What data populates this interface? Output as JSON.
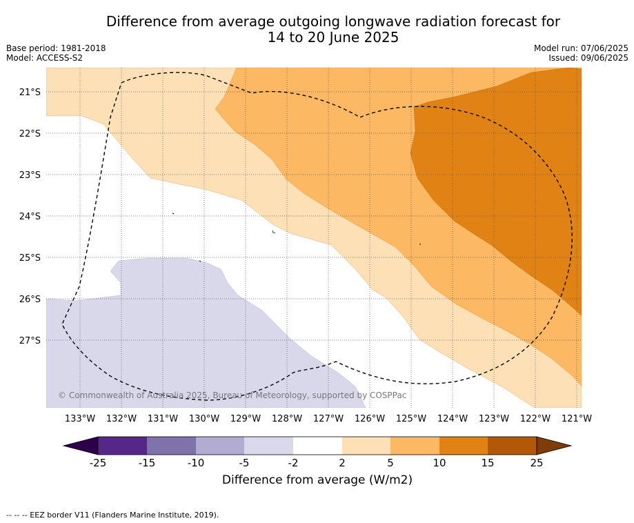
{
  "header": {
    "title_line1": "Difference from average outgoing longwave radiation forecast for",
    "title_line2": "14 to 20 June 2025",
    "base_period": "Base period: 1981-2018",
    "model": "Model: ACCESS-S2",
    "model_run": "Model run: 07/06/2025",
    "issued": "Issued: 09/06/2025"
  },
  "map": {
    "lon_labels": [
      "133°W",
      "132°W",
      "131°W",
      "130°W",
      "129°W",
      "128°W",
      "127°W",
      "126°W",
      "125°W",
      "124°W",
      "123°W",
      "122°W",
      "121°W"
    ],
    "lat_labels": [
      "21°S",
      "22°S",
      "23°S",
      "24°S",
      "25°S",
      "26°S",
      "27°S"
    ],
    "copyright": "© Commonwealth of Australia 2025, Bureau of Meteorology, supported by COSPPac",
    "region_colors": {
      "neg5_neg2": "#d8d8ea",
      "pos2_5": "#fee0b6",
      "pos5_10": "#fdb863",
      "pos10_15": "#e08214"
    }
  },
  "colorbar": {
    "ticks": [
      "-25",
      "-15",
      "-10",
      "-5",
      "-2",
      "2",
      "5",
      "10",
      "15",
      "25"
    ],
    "colors": [
      "#542788",
      "#8073ac",
      "#b2abd2",
      "#d8daeb",
      "#ffffff",
      "#fee0b6",
      "#fdb863",
      "#e08214",
      "#b35806"
    ],
    "under_color": "#2d004b",
    "over_color": "#7f3b08",
    "label": "Difference from average (W/m2)"
  },
  "footer": {
    "eez_note": "--  --  -- EEZ border V11 (Flanders Marine Institute, 2019)."
  }
}
